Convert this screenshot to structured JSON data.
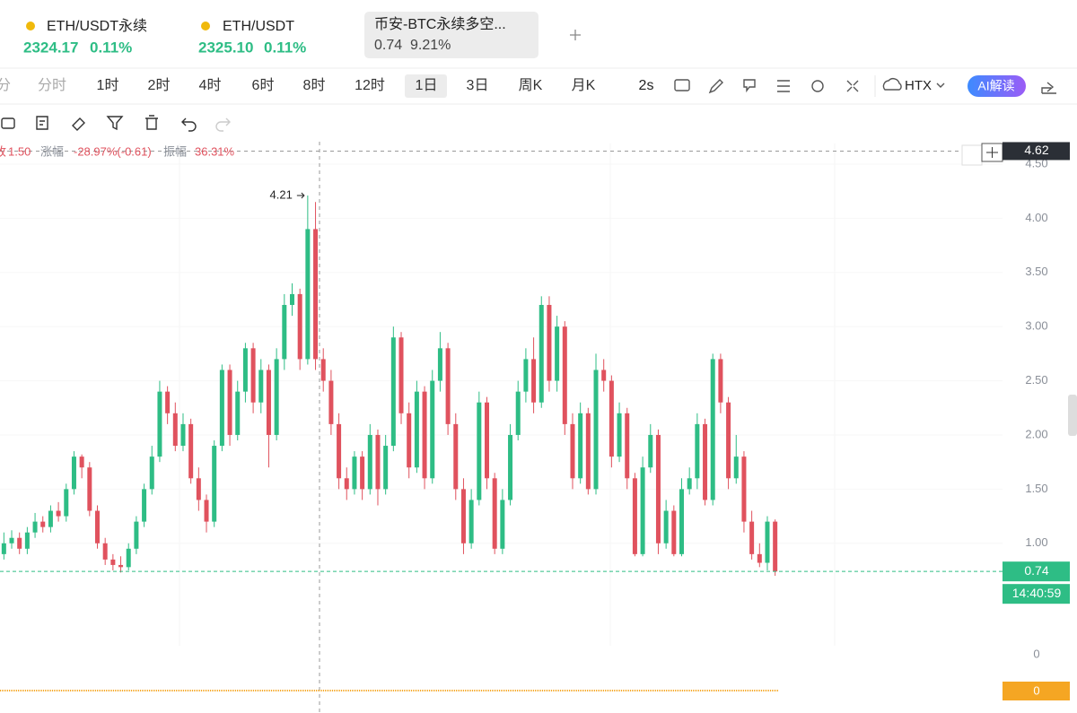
{
  "tabs": [
    {
      "name": "ETH/USDT永续",
      "price": "2324.17",
      "change": "0.11%"
    },
    {
      "name": "ETH/USDT",
      "price": "2325.10",
      "change": "0.11%"
    },
    {
      "name": "币安-BTC永续多空...",
      "price": "0.74",
      "change": "9.21%"
    }
  ],
  "timeframes": [
    "分",
    "分时",
    "1时",
    "2时",
    "4时",
    "6时",
    "8时",
    "12时",
    "1日",
    "3日",
    "周K",
    "月K"
  ],
  "toolbar": {
    "refresh": "2s",
    "exchange": "HTX",
    "ai": "AI解读"
  },
  "info": {
    "close_label": "收",
    "close": "1.50",
    "change_label": "涨幅",
    "change": "-28.97%(-0.61)",
    "amp_label": "振幅",
    "amp": "36.31%"
  },
  "chart_data": {
    "type": "candlestick",
    "up_color": "#2ebd85",
    "down_color": "#e0525e",
    "ylim": [
      0.22,
      4.69
    ],
    "yticks": [
      {
        "value": 1,
        "label": "1.00"
      },
      {
        "value": 1.5,
        "label": "1.50"
      },
      {
        "value": 2,
        "label": "2.00"
      },
      {
        "value": 2.5,
        "label": "2.50"
      },
      {
        "value": 3,
        "label": "3.00"
      },
      {
        "value": 3.5,
        "label": "3.50"
      },
      {
        "value": 4,
        "label": "4.00"
      },
      {
        "value": 4.5,
        "label": "4.50"
      }
    ],
    "crosshair_price": 4.62,
    "last_price": 0.74,
    "countdown": "14:40:59",
    "max_high": 4.21,
    "ohlc": [
      [
        0.9,
        1.1,
        0.85,
        1.0
      ],
      [
        1.0,
        1.12,
        0.95,
        1.05
      ],
      [
        1.05,
        1.1,
        0.9,
        0.95
      ],
      [
        0.95,
        1.15,
        0.9,
        1.1
      ],
      [
        1.1,
        1.28,
        1.05,
        1.2
      ],
      [
        1.2,
        1.25,
        1.1,
        1.15
      ],
      [
        1.15,
        1.35,
        1.1,
        1.3
      ],
      [
        1.3,
        1.38,
        1.2,
        1.25
      ],
      [
        1.25,
        1.55,
        1.2,
        1.5
      ],
      [
        1.5,
        1.85,
        1.45,
        1.8
      ],
      [
        1.8,
        1.82,
        1.6,
        1.7
      ],
      [
        1.7,
        1.75,
        1.25,
        1.3
      ],
      [
        1.3,
        1.35,
        0.95,
        1.0
      ],
      [
        1.0,
        1.05,
        0.8,
        0.85
      ],
      [
        0.85,
        0.9,
        0.75,
        0.8
      ],
      [
        0.8,
        0.88,
        0.73,
        0.78
      ],
      [
        0.78,
        1.0,
        0.75,
        0.95
      ],
      [
        0.95,
        1.25,
        0.9,
        1.2
      ],
      [
        1.2,
        1.55,
        1.15,
        1.5
      ],
      [
        1.5,
        1.9,
        1.45,
        1.8
      ],
      [
        1.8,
        2.5,
        1.75,
        2.4
      ],
      [
        2.4,
        2.45,
        2.1,
        2.2
      ],
      [
        2.2,
        2.3,
        1.85,
        1.9
      ],
      [
        1.9,
        2.2,
        1.85,
        2.1
      ],
      [
        2.1,
        2.15,
        1.55,
        1.6
      ],
      [
        1.6,
        1.7,
        1.3,
        1.4
      ],
      [
        1.4,
        1.45,
        1.1,
        1.2
      ],
      [
        1.2,
        1.95,
        1.15,
        1.9
      ],
      [
        1.9,
        2.65,
        1.85,
        2.6
      ],
      [
        2.6,
        2.65,
        1.9,
        2.0
      ],
      [
        2.0,
        2.5,
        1.95,
        2.4
      ],
      [
        2.4,
        2.85,
        2.3,
        2.8
      ],
      [
        2.8,
        2.85,
        2.2,
        2.3
      ],
      [
        2.3,
        2.7,
        2.2,
        2.6
      ],
      [
        2.6,
        2.65,
        1.7,
        2.0
      ],
      [
        2.0,
        2.8,
        1.95,
        2.7
      ],
      [
        2.7,
        3.3,
        2.6,
        3.2
      ],
      [
        3.2,
        3.4,
        3.1,
        3.3
      ],
      [
        3.3,
        3.35,
        2.6,
        2.7
      ],
      [
        2.7,
        4.21,
        2.65,
        3.9
      ],
      [
        3.9,
        4.15,
        2.6,
        2.7
      ],
      [
        2.7,
        2.8,
        2.4,
        2.5
      ],
      [
        2.5,
        2.6,
        2.0,
        2.1
      ],
      [
        2.1,
        2.2,
        1.5,
        1.6
      ],
      [
        1.6,
        1.7,
        1.4,
        1.5
      ],
      [
        1.5,
        1.85,
        1.45,
        1.8
      ],
      [
        1.8,
        1.85,
        1.4,
        1.5
      ],
      [
        1.5,
        2.1,
        1.45,
        2.0
      ],
      [
        2.0,
        2.05,
        1.35,
        1.5
      ],
      [
        1.5,
        2.0,
        1.45,
        1.9
      ],
      [
        1.9,
        3.0,
        1.85,
        2.9
      ],
      [
        2.9,
        2.95,
        2.1,
        2.2
      ],
      [
        2.2,
        2.3,
        1.6,
        1.7
      ],
      [
        1.7,
        2.5,
        1.65,
        2.4
      ],
      [
        2.4,
        2.45,
        1.5,
        1.6
      ],
      [
        1.6,
        2.6,
        1.55,
        2.5
      ],
      [
        2.5,
        2.95,
        2.4,
        2.8
      ],
      [
        2.8,
        2.85,
        2.0,
        2.1
      ],
      [
        2.1,
        2.2,
        1.4,
        1.5
      ],
      [
        1.5,
        1.6,
        0.9,
        1.0
      ],
      [
        1.0,
        1.5,
        0.95,
        1.4
      ],
      [
        1.4,
        2.4,
        1.35,
        2.3
      ],
      [
        2.3,
        2.35,
        1.5,
        1.6
      ],
      [
        1.6,
        1.65,
        0.9,
        0.95
      ],
      [
        0.95,
        1.5,
        0.9,
        1.4
      ],
      [
        1.4,
        2.1,
        1.35,
        2.0
      ],
      [
        2.0,
        2.5,
        1.95,
        2.4
      ],
      [
        2.4,
        2.8,
        2.3,
        2.7
      ],
      [
        2.7,
        2.9,
        2.2,
        2.3
      ],
      [
        2.3,
        3.28,
        2.25,
        3.2
      ],
      [
        3.2,
        3.28,
        2.4,
        2.5
      ],
      [
        2.5,
        3.1,
        2.4,
        3.0
      ],
      [
        3.0,
        3.05,
        2.0,
        2.1
      ],
      [
        2.1,
        2.2,
        1.5,
        1.6
      ],
      [
        1.6,
        2.3,
        1.55,
        2.2
      ],
      [
        2.2,
        2.25,
        1.45,
        1.5
      ],
      [
        1.5,
        2.75,
        1.45,
        2.6
      ],
      [
        2.6,
        2.7,
        2.4,
        2.5
      ],
      [
        2.5,
        2.55,
        1.7,
        1.8
      ],
      [
        1.8,
        2.3,
        1.75,
        2.2
      ],
      [
        2.2,
        2.25,
        1.5,
        1.6
      ],
      [
        1.6,
        1.65,
        0.88,
        0.9
      ],
      [
        0.9,
        1.8,
        0.88,
        1.7
      ],
      [
        1.7,
        2.1,
        1.65,
        2.0
      ],
      [
        2.0,
        2.05,
        0.9,
        1.0
      ],
      [
        1.0,
        1.4,
        0.95,
        1.3
      ],
      [
        1.3,
        1.35,
        0.88,
        0.9
      ],
      [
        0.9,
        1.6,
        0.88,
        1.5
      ],
      [
        1.5,
        1.7,
        1.45,
        1.6
      ],
      [
        1.6,
        2.2,
        1.5,
        2.1
      ],
      [
        2.1,
        2.15,
        1.35,
        1.4
      ],
      [
        1.4,
        2.75,
        1.35,
        2.7
      ],
      [
        2.7,
        2.75,
        2.2,
        2.3
      ],
      [
        2.3,
        2.35,
        1.5,
        1.6
      ],
      [
        1.6,
        2.0,
        1.55,
        1.8
      ],
      [
        1.8,
        1.85,
        1.1,
        1.2
      ],
      [
        1.2,
        1.3,
        0.85,
        0.9
      ],
      [
        0.9,
        1.0,
        0.78,
        0.82
      ],
      [
        0.82,
        1.25,
        0.75,
        1.2
      ],
      [
        1.2,
        1.22,
        0.7,
        0.74
      ]
    ],
    "sub_indicator": {
      "yticks": [
        0
      ],
      "value": 0,
      "color": "#f5a623"
    }
  }
}
